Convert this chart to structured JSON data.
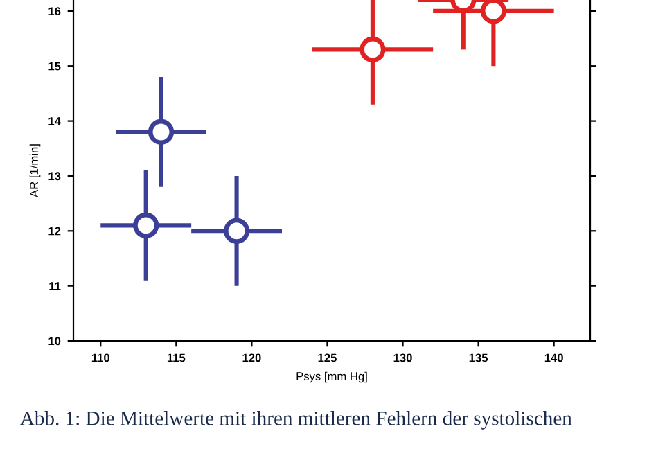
{
  "chart_data": {
    "type": "scatter",
    "xlabel": "Psys [mm Hg]",
    "ylabel": "AR [1/min]",
    "xlim": [
      108.2,
      142.4
    ],
    "xticks": [
      110,
      115,
      120,
      125,
      130,
      135,
      140
    ],
    "ylim": [
      10,
      16.2
    ],
    "yticks": [
      10,
      11,
      12,
      13,
      14,
      15,
      16
    ],
    "marker": "circle",
    "grid": false,
    "legend": false,
    "series": [
      {
        "color": "#3b3f95",
        "x": [
          114,
          113,
          119
        ],
        "values": [
          13.8,
          12.1,
          12.0
        ],
        "errors": [
          1,
          1,
          1
        ],
        "xerrors": [
          3,
          3,
          3
        ]
      },
      {
        "color": "#e02222",
        "x": [
          128,
          134,
          136
        ],
        "values": [
          15.3,
          16.2,
          16.0
        ],
        "errors": [
          [
            14.3,
            16.2
          ],
          [
            15.3,
            16.2
          ],
          [
            15,
            16.2
          ]
        ],
        "xerrors": [
          4,
          3,
          4
        ]
      }
    ],
    "annotations": [
      "Abb. 1: Die Mittelwerte mit ihren mittleren Fehlern der systolischen"
    ]
  }
}
